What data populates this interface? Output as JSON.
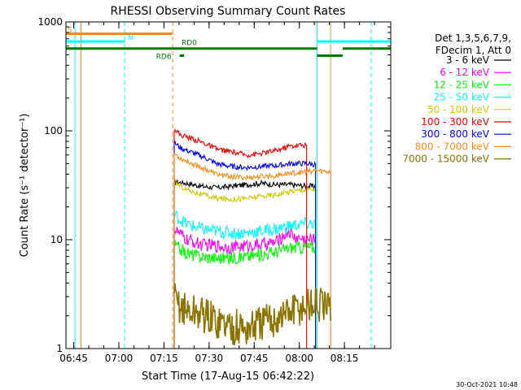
{
  "chart_data": {
    "type": "line",
    "title": "RHESSI Observing Summary Count Rates",
    "xlabel": "Start Time (17-Aug-15 06:42:22)",
    "ylabel": "Count Rate (s⁻¹ detector⁻¹)",
    "y_scale": "log",
    "ylim": [
      1,
      1000
    ],
    "x_units": "minutes after 06:42:22",
    "xlim": [
      0,
      108
    ],
    "grid": false,
    "legend_position": "right",
    "y_ticks": [
      {
        "value": 1,
        "label": "1"
      },
      {
        "value": 10,
        "label": "10"
      },
      {
        "value": 100,
        "label": "100"
      },
      {
        "value": 1000,
        "label": "1000"
      }
    ],
    "x_ticks": [
      {
        "value": 2.6,
        "label": "06:45"
      },
      {
        "value": 17.6,
        "label": "07:00"
      },
      {
        "value": 32.6,
        "label": "07:15"
      },
      {
        "value": 47.6,
        "label": "07:30"
      },
      {
        "value": 62.6,
        "label": "07:45"
      },
      {
        "value": 77.6,
        "label": "08:00"
      },
      {
        "value": 92.6,
        "label": "08:15"
      }
    ],
    "legend_header": [
      "Det 1,3,5,6,7,9,",
      "FDecim 1, Att 0"
    ],
    "series": [
      {
        "name": "3 - 6 keV",
        "color": "#000000",
        "points": [
          [
            36,
            34
          ],
          [
            40,
            33
          ],
          [
            45,
            31
          ],
          [
            50,
            30
          ],
          [
            55,
            31
          ],
          [
            60,
            32
          ],
          [
            65,
            33
          ],
          [
            70,
            32
          ],
          [
            75,
            32
          ],
          [
            80,
            31
          ],
          [
            83,
            31
          ]
        ]
      },
      {
        "name": "6 - 12 keV",
        "color": "#ff00ff",
        "points": [
          [
            36,
            12.5
          ],
          [
            40,
            10
          ],
          [
            45,
            9
          ],
          [
            50,
            8.8
          ],
          [
            55,
            8.5
          ],
          [
            60,
            8.8
          ],
          [
            65,
            9
          ],
          [
            70,
            9.5
          ],
          [
            74,
            12
          ],
          [
            76,
            10.5
          ],
          [
            80,
            10
          ],
          [
            83,
            10
          ]
        ]
      },
      {
        "name": "12 - 25 keV",
        "color": "#00ff00",
        "points": [
          [
            36,
            9
          ],
          [
            40,
            7.5
          ],
          [
            45,
            7
          ],
          [
            50,
            6.8
          ],
          [
            55,
            6.8
          ],
          [
            60,
            7
          ],
          [
            65,
            7.3
          ],
          [
            70,
            7.8
          ],
          [
            75,
            8.5
          ],
          [
            80,
            8.5
          ],
          [
            83,
            8.5
          ]
        ]
      },
      {
        "name": "25 - 50 keV",
        "color": "#00ffff",
        "points": [
          [
            36,
            17
          ],
          [
            40,
            14
          ],
          [
            45,
            12.5
          ],
          [
            50,
            12
          ],
          [
            55,
            11.5
          ],
          [
            60,
            11.5
          ],
          [
            65,
            12
          ],
          [
            70,
            12.5
          ],
          [
            75,
            13.5
          ],
          [
            80,
            14
          ],
          [
            83,
            14
          ]
        ]
      },
      {
        "name": "50 - 100 keV",
        "color": "#cccc00",
        "points": [
          [
            36,
            34
          ],
          [
            40,
            29
          ],
          [
            45,
            26
          ],
          [
            50,
            24
          ],
          [
            55,
            23.5
          ],
          [
            60,
            24
          ],
          [
            65,
            25
          ],
          [
            70,
            26
          ],
          [
            75,
            28
          ],
          [
            80,
            29
          ],
          [
            83,
            29
          ]
        ]
      },
      {
        "name": "100 - 300 keV",
        "color": "#ff0000",
        "points": [
          [
            36,
            105
          ],
          [
            38,
            92
          ],
          [
            42,
            85
          ],
          [
            46,
            77
          ],
          [
            50,
            68
          ],
          [
            55,
            64
          ],
          [
            60,
            60
          ],
          [
            65,
            62
          ],
          [
            70,
            66
          ],
          [
            74,
            72
          ],
          [
            78,
            74
          ],
          [
            80,
            74
          ]
        ]
      },
      {
        "name": "300 - 800 keV",
        "color": "#0000ff",
        "points": [
          [
            36,
            78
          ],
          [
            38,
            70
          ],
          [
            42,
            63
          ],
          [
            46,
            57
          ],
          [
            50,
            50
          ],
          [
            55,
            47
          ],
          [
            60,
            46
          ],
          [
            65,
            47
          ],
          [
            70,
            48
          ],
          [
            75,
            50
          ],
          [
            80,
            50
          ],
          [
            83,
            49
          ]
        ]
      },
      {
        "name": "800 - 7000 keV",
        "color": "#ff8c1a",
        "points": [
          [
            36,
            62
          ],
          [
            38,
            56
          ],
          [
            42,
            50
          ],
          [
            46,
            45
          ],
          [
            50,
            40
          ],
          [
            55,
            38
          ],
          [
            60,
            37
          ],
          [
            65,
            38
          ],
          [
            70,
            39
          ],
          [
            75,
            41
          ],
          [
            80,
            42
          ],
          [
            83,
            43
          ],
          [
            88,
            42
          ]
        ]
      },
      {
        "name": "7000 - 15000 keV",
        "color": "#8b7500",
        "points": [
          [
            36,
            2.8
          ],
          [
            40,
            2.2
          ],
          [
            45,
            2.1
          ],
          [
            50,
            1.8
          ],
          [
            55,
            1.6
          ],
          [
            60,
            1.5
          ],
          [
            65,
            1.7
          ],
          [
            70,
            1.9
          ],
          [
            75,
            2.2
          ],
          [
            80,
            2.5
          ],
          [
            83,
            2.6
          ],
          [
            88,
            2.2
          ]
        ]
      }
    ],
    "state_bars": [
      {
        "label": "S",
        "color": "#ff8c1a",
        "x": [
          0,
          35.5
        ],
        "y": 780
      },
      {
        "label": "N",
        "color": "#00ffff",
        "x": [
          0,
          19.5
        ],
        "y": 660
      },
      {
        "label": "N",
        "color": "#00ffff",
        "x": [
          83.5,
          108
        ],
        "y": 660
      },
      {
        "label": "RD0",
        "color": "#007700",
        "x": [
          0,
          83.5
        ],
        "y": 570
      },
      {
        "label": "RD0",
        "color": "#007700",
        "x": [
          83.5,
          92
        ],
        "y": 490
      },
      {
        "label": "RD0",
        "color": "#007700",
        "x": [
          92,
          108
        ],
        "y": 570
      },
      {
        "label": "RD6",
        "color": "#007700",
        "x": [
          37.8,
          39.3
        ],
        "y": 490
      }
    ],
    "vertical_markers": [
      {
        "x": 3,
        "color": "#00ffff",
        "style": "solid"
      },
      {
        "x": 5,
        "color": "#ff8c1a",
        "style": "solid"
      },
      {
        "x": 19.5,
        "color": "#00ffff",
        "style": "dashed"
      },
      {
        "x": 35.5,
        "color": "#ff8c1a",
        "style": "dashed"
      },
      {
        "x": 83.5,
        "color": "#00ffff",
        "style": "solid"
      },
      {
        "x": 88,
        "color": "#ff8c1a",
        "style": "solid"
      },
      {
        "x": 101.5,
        "color": "#00ffff",
        "style": "dashed"
      }
    ],
    "footer_date": "30-Oct-2021 10:48"
  }
}
